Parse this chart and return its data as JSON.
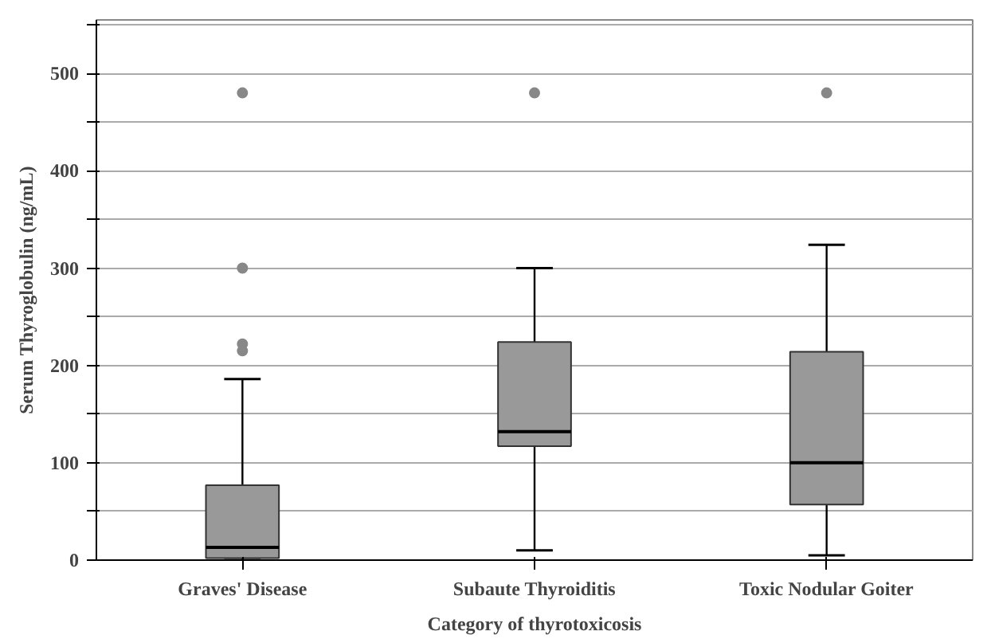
{
  "chart_data": {
    "type": "box",
    "xlabel": "Category of thyrotoxicosis",
    "ylabel": "Serum Thyroglobulin (ng/mL)",
    "categories": [
      "Graves' Disease",
      "Subaute Thyroiditis",
      "Toxic Nodular Goiter"
    ],
    "boxes": [
      {
        "low": 0,
        "q1": 2,
        "median": 13,
        "q3": 77,
        "high": 186,
        "outliers": [
          215,
          222,
          300,
          480
        ]
      },
      {
        "low": 10,
        "q1": 117,
        "median": 132,
        "q3": 224,
        "high": 300,
        "outliers": [
          480
        ]
      },
      {
        "low": 5,
        "q1": 57,
        "median": 100,
        "q3": 214,
        "high": 324,
        "outliers": [
          480
        ]
      }
    ],
    "color": "#999999",
    "ylim": [
      0,
      555
    ],
    "yticks": [
      0,
      {
        "value": 50,
        "label": null
      },
      100,
      {
        "value": 150,
        "label": null
      },
      200,
      {
        "value": 250,
        "label": null
      },
      300,
      {
        "value": 350,
        "label": null
      },
      400,
      {
        "value": 450,
        "label": null
      },
      500,
      {
        "value": 550,
        "label": null
      }
    ],
    "grid": "y"
  }
}
